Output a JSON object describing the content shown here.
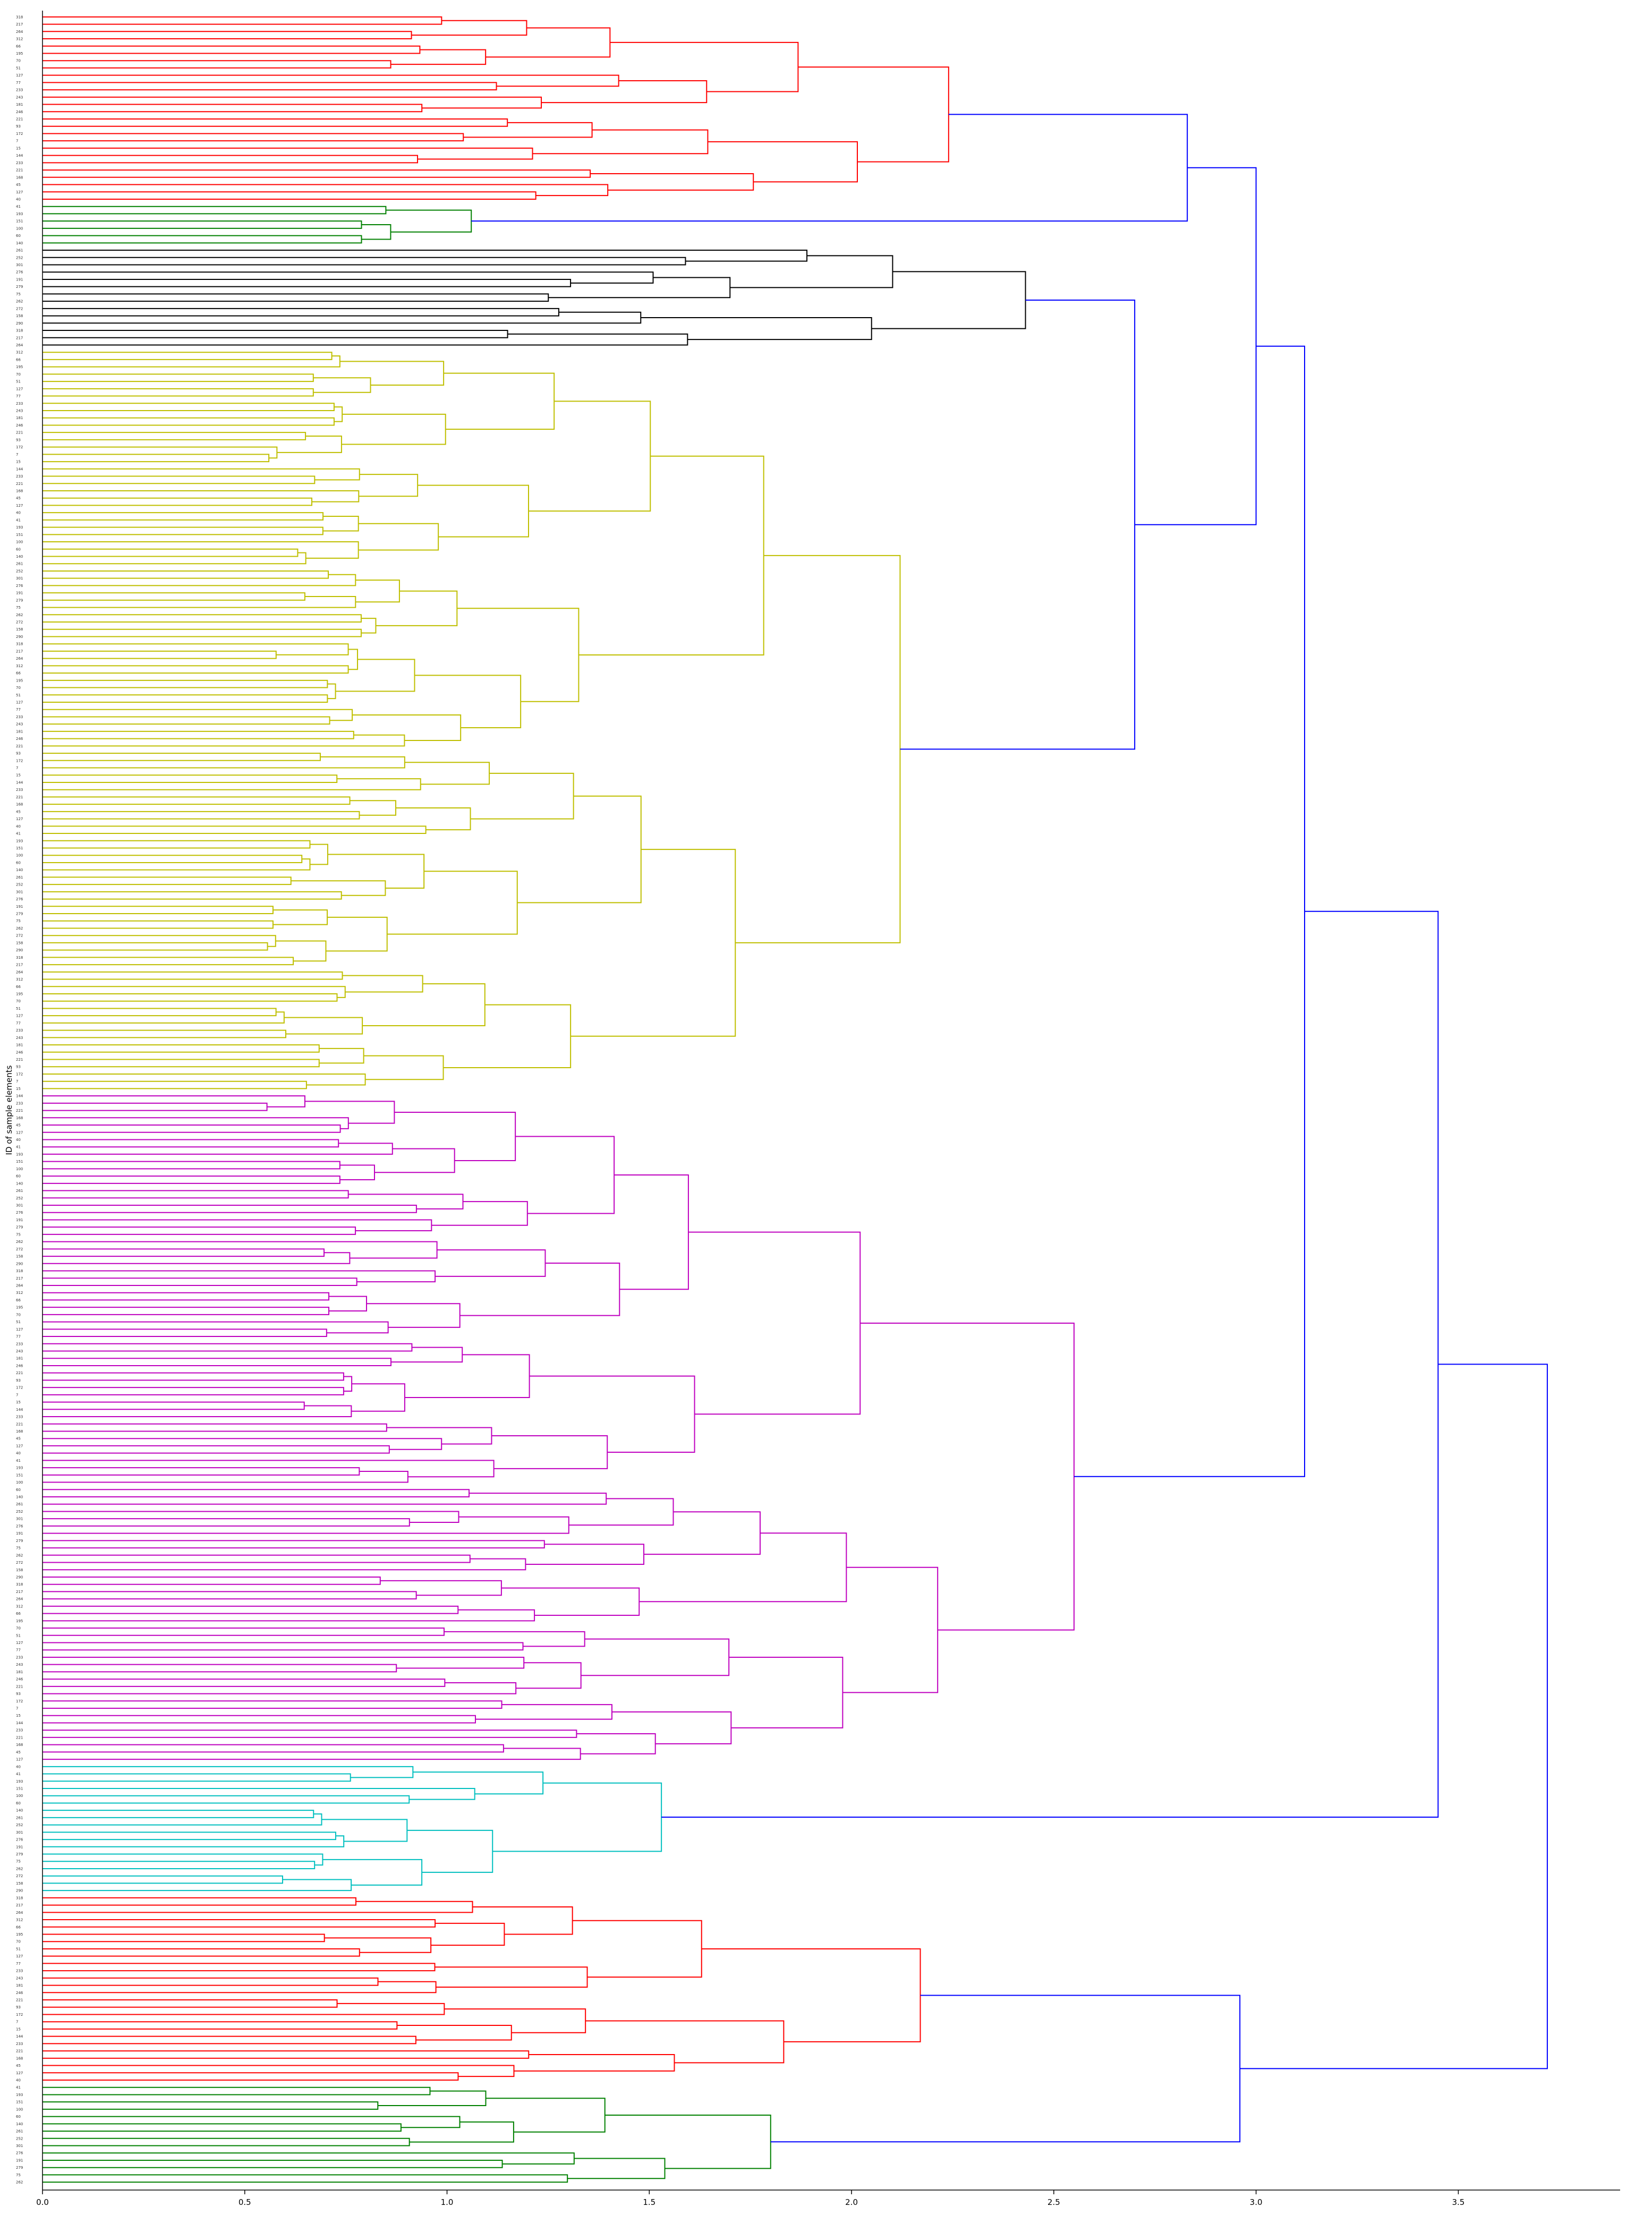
{
  "chart_data": {
    "type": "dendrogram",
    "orientation": "left-to-right",
    "title": "",
    "xlabel": "",
    "ylabel": "ID of sample elements",
    "xlim": [
      0.0,
      3.9
    ],
    "xticks": [
      "0.0",
      "0.5",
      "1.0",
      "1.5",
      "2.0",
      "2.5",
      "3.0",
      "3.5"
    ],
    "link_color": "#0000ff",
    "leaf_labels": [
      "318",
      "217",
      "264",
      "312",
      "66",
      "195",
      "70",
      "51",
      "127",
      "77",
      "233",
      "243",
      "181",
      "246",
      "221",
      "93",
      "172",
      "7",
      "15",
      "144",
      "233",
      "221",
      "168",
      "45",
      "127",
      "40",
      "41",
      "193",
      "151",
      "100",
      "60",
      "140",
      "261",
      "252",
      "301",
      "276",
      "191",
      "279",
      "75",
      "262",
      "272",
      "158",
      "290"
    ],
    "clusters": [
      {
        "name": "cluster-1",
        "color": "#ff0000",
        "leaves": 26,
        "height": 2.24,
        "sub": [
          1.46,
          1.4,
          1.38,
          1.46,
          1.56,
          1.66,
          1.7,
          1.2,
          1.16,
          1.1
        ]
      },
      {
        "name": "cluster-2",
        "color": "#008000",
        "leaves": 6,
        "height": 1.06,
        "sub": [
          0.86,
          0.88,
          0.72,
          1.0
        ]
      },
      {
        "name": "cluster-3",
        "color": "#000000",
        "leaves": 14,
        "height": 2.43,
        "sub": [
          1.25,
          1.54,
          1.02,
          0.78,
          1.17,
          1.2,
          1.25,
          1.1
        ]
      },
      {
        "name": "cluster-4",
        "color": "#bfbf00",
        "leaves": 102,
        "height": 2.12,
        "sub": [
          1.47,
          1.55,
          1.66,
          1.72,
          1.84,
          1.99,
          2.02,
          1.56,
          1.6,
          1.72,
          1.85,
          1.96,
          1.4,
          1.48
        ]
      },
      {
        "name": "cluster-5",
        "color": "#bf00bf",
        "leaves": 92,
        "height": 2.55,
        "sub": [
          1.56,
          1.62,
          1.72,
          1.82,
          1.86,
          1.98,
          2.1,
          2.48,
          2.5,
          1.89,
          1.25,
          1.8,
          1.67,
          1.41
        ]
      },
      {
        "name": "cluster-6",
        "color": "#00bfbf",
        "leaves": 18,
        "height": 1.53,
        "sub": [
          1.36,
          1.3,
          1.23,
          1.35,
          1.1
        ]
      },
      {
        "name": "cluster-7",
        "color": "#ff0000",
        "leaves": 26,
        "height": 2.17,
        "sub": [
          1.8,
          1.37,
          1.3,
          1.27,
          1.2
        ]
      },
      {
        "name": "cluster-8",
        "color": "#008000",
        "leaves": 14,
        "height": 1.8,
        "sub": [
          1.62,
          1.5,
          1.35,
          1.16
        ]
      }
    ],
    "merges": [
      {
        "left": "cluster-1",
        "right": "cluster-2",
        "height": 2.83
      },
      {
        "left": "cluster-3",
        "right": "cluster-4",
        "height": 2.7
      },
      {
        "left": "cluster-1+cluster-2",
        "right": "cluster-3+cluster-4",
        "height": 3.0
      },
      {
        "left": "cluster-5",
        "right": "upper",
        "height": 3.12
      },
      {
        "left": "cluster-6",
        "right": "cluster-1-5",
        "height": 3.45
      },
      {
        "left": "cluster-7",
        "right": "cluster-8",
        "height": 2.96
      },
      {
        "left": "all-upper",
        "right": "cluster-7+cluster-8",
        "height": 3.72
      }
    ]
  }
}
